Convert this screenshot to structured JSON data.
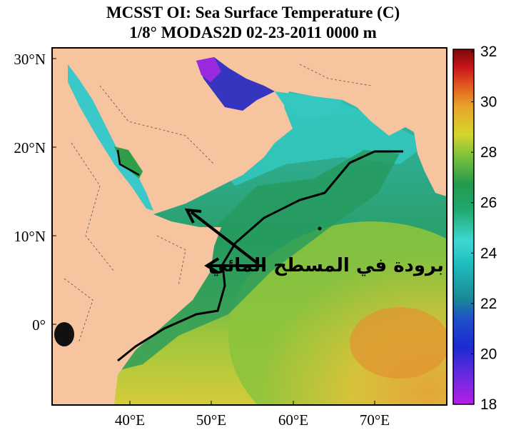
{
  "title_line1": "MCSST OI:  Sea Surface Temperature (C)",
  "title_line2": "1/8° MODAS2D 02-23-2011 0000 m",
  "lat_labels": [
    "30°N",
    "20°N",
    "10°N",
    "0°"
  ],
  "lon_labels": [
    "40°E",
    "50°E",
    "60°E",
    "70°E"
  ],
  "colorbar": {
    "min": 18,
    "max": 32,
    "labels": [
      "32",
      "30",
      "28",
      "26",
      "24",
      "22",
      "20",
      "18"
    ]
  },
  "annotation": "برودة في المسطح المائي",
  "colors": {
    "land": "#F7C4A0",
    "cold": "#7A2FD8",
    "cool": "#3BC8C8",
    "mid": "#2EA36A",
    "warm": "#C9CC32",
    "hot": "#E89A2A"
  }
}
